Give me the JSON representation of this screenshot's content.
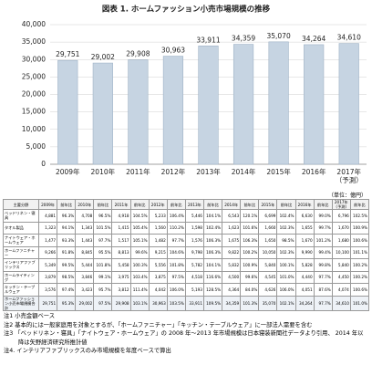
{
  "chart_data": {
    "type": "bar",
    "title": "図表 1. ホームファッション小売市場規模の推移",
    "categories": [
      "2009年",
      "2010年",
      "2011年",
      "2012年",
      "2013年",
      "2014年",
      "2015年",
      "2016年",
      "2017年（予測）"
    ],
    "values": [
      29751,
      29002,
      29908,
      30963,
      33911,
      34359,
      35070,
      34264,
      34610
    ],
    "value_labels": [
      "29,751",
      "29,002",
      "29,908",
      "30,963",
      "33,911",
      "34,359",
      "35,070",
      "34,264",
      "34,610"
    ],
    "color": "#c6d4e2",
    "ylim": [
      0,
      40000
    ],
    "yticks": [
      0,
      {
        "value": 5000,
        "label": "5,000"
      },
      {
        "value": 10000,
        "label": "10,000"
      },
      {
        "value": 15000,
        "label": "15,000"
      },
      {
        "value": 20000,
        "label": "20,000"
      },
      {
        "value": 25000,
        "label": "25,000"
      },
      {
        "value": 30000,
        "label": "30,000"
      },
      {
        "value": 35000,
        "label": "35,000"
      },
      {
        "value": 40000,
        "label": "40,000"
      }
    ],
    "grid": true
  },
  "table": {
    "unit": "（単位：億円）",
    "header": [
      "主要分野",
      "2009年",
      "前年比",
      "2010年",
      "前年比",
      "2011年",
      "前年比",
      "2012年",
      "前年比",
      "2013年",
      "前年比",
      "2014年",
      "前年比",
      "2015年",
      "前年比",
      "2016年",
      "前年比",
      "2017年（予測）",
      "前年比"
    ],
    "rows": [
      [
        "ベッドリネン・寝具",
        "4,881",
        "96.3%",
        "4,708",
        "96.5%",
        "4,918",
        "104.5%",
        "5,233",
        "106.4%",
        "5,446",
        "104.1%",
        "6,543",
        "120.1%",
        "6,699",
        "102.4%",
        "6,630",
        "99.0%",
        "6,796",
        "102.5%"
      ],
      [
        "タオル製品",
        "1,323",
        "94.1%",
        "1,343",
        "101.5%",
        "1,415",
        "105.4%",
        "1,560",
        "110.2%",
        "1,598",
        "102.4%",
        "1,623",
        "101.6%",
        "1,660",
        "102.3%",
        "1,655",
        "99.7%",
        "1,670",
        "100.9%"
      ],
      [
        "ナイトウェア・ホームウェア",
        "1,477",
        "93.3%",
        "1,443",
        "97.7%",
        "1,517",
        "105.1%",
        "1,482",
        "97.7%",
        "1,576",
        "106.3%",
        "1,675",
        "106.3%",
        "1,650",
        "98.5%",
        "1,670",
        "101.2%",
        "1,680",
        "100.6%"
      ],
      [
        "ホームファニチャー",
        "9,266",
        "91.8%",
        "8,845",
        "95.5%",
        "8,813",
        "99.6%",
        "9,215",
        "104.6%",
        "9,798",
        "106.3%",
        "9,822",
        "100.2%",
        "10,050",
        "102.3%",
        "9,990",
        "99.4%",
        "10,100",
        "101.1%"
      ],
      [
        "インテリアファブリックス",
        "5,349",
        "99.5%",
        "5,444",
        "101.8%",
        "5,458",
        "100.3%",
        "5,556",
        "101.8%",
        "5,782",
        "104.1%",
        "5,832",
        "100.9%",
        "5,840",
        "100.1%",
        "5,828",
        "99.8%",
        "5,840",
        "100.2%"
      ],
      [
        "ホームライティング",
        "3,879",
        "98.5%",
        "3,846",
        "99.1%",
        "3,975",
        "103.4%",
        "3,875",
        "97.5%",
        "4,518",
        "116.6%",
        "4,500",
        "99.6%",
        "4,545",
        "101.0%",
        "4,440",
        "97.7%",
        "4,450",
        "100.2%"
      ],
      [
        "キッチン・テーブルウェア",
        "3,576",
        "97.4%",
        "3,423",
        "95.7%",
        "3,812",
        "111.4%",
        "4,042",
        "106.0%",
        "5,193",
        "128.5%",
        "4,364",
        "84.0%",
        "4,626",
        "106.0%",
        "4,051",
        "87.6%",
        "4,074",
        "100.6%"
      ],
      [
        "ホームファッション小売市場規模合計",
        "29,751",
        "95.3%",
        "29,002",
        "97.5%",
        "29,908",
        "103.1%",
        "30,963",
        "103.5%",
        "33,911",
        "109.5%",
        "34,359",
        "101.3%",
        "35,070",
        "102.1%",
        "34,264",
        "97.7%",
        "34,610",
        "101.0%"
      ]
    ]
  },
  "notes": [
    "注1 小売金額ベース",
    "注2 基本的には一般家庭用を対象とするが、「ホームファニチャー」「キッチン・テーブルウェア」に一部法人需要を含む",
    "注3 「ベッドリネン・寝具」「ナイトウェア・ホームウェア」の 2008 年～2013 年市場規模は日本寝装新聞社データより引用、 2014 年以降は矢野経済研究所推計値",
    "注4. インテリアファブリックスのみ市場規模を年度ベースで算出"
  ]
}
